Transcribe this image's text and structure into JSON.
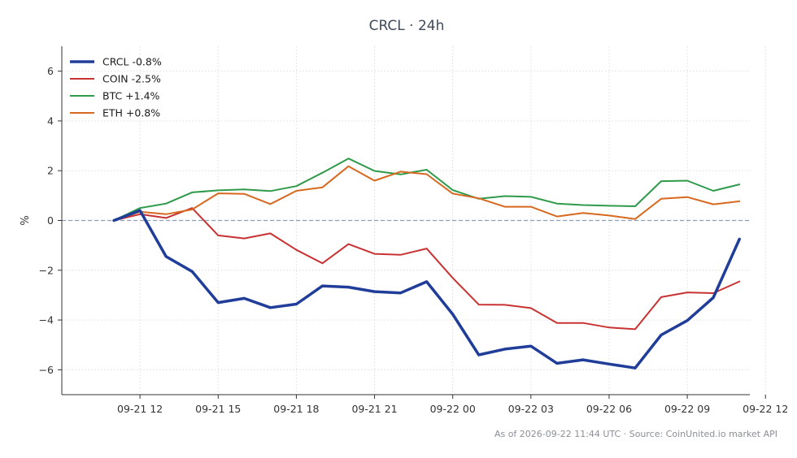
{
  "chart_data": {
    "type": "line",
    "title": "CRCL · 24h",
    "ylabel": "%",
    "xlabel": "",
    "ylim": [
      -7,
      7
    ],
    "yticks": [
      -6,
      -4,
      -2,
      0,
      2,
      4,
      6
    ],
    "ytick_labels": [
      "−6",
      "−4",
      "−2",
      "0",
      "2",
      "4",
      "6"
    ],
    "xlim": [
      -2,
      24.4
    ],
    "xticks": [
      1,
      4,
      7,
      10,
      13,
      16,
      19,
      22,
      25
    ],
    "xtick_labels": [
      "09-21 12",
      "09-21 15",
      "09-21 18",
      "09-21 21",
      "09-22 00",
      "09-22 03",
      "09-22 06",
      "09-22 09",
      "09-22 12"
    ],
    "x": [
      0,
      1,
      2,
      3,
      4,
      5,
      6,
      7,
      8,
      9,
      10,
      11,
      12,
      13,
      14,
      15,
      16,
      17,
      18,
      19,
      20,
      21,
      22,
      23,
      24
    ],
    "grid": true,
    "zero_line": true,
    "legend_position": "top-left",
    "series": [
      {
        "name": "CRCL -0.8%",
        "color": "#1f3d99",
        "width": 3.5,
        "values": [
          0.0,
          0.4,
          -1.45,
          -2.05,
          -3.3,
          -3.13,
          -3.5,
          -3.36,
          -2.63,
          -2.68,
          -2.86,
          -2.91,
          -2.46,
          -3.77,
          -5.4,
          -5.17,
          -5.05,
          -5.74,
          -5.6,
          -5.77,
          -5.93,
          -4.6,
          -4.02,
          -3.1,
          -0.75
        ]
      },
      {
        "name": "COIN -2.5%",
        "color": "#c83232",
        "width": 2,
        "values": [
          0.0,
          0.25,
          0.1,
          0.5,
          -0.6,
          -0.72,
          -0.52,
          -1.18,
          -1.72,
          -0.95,
          -1.34,
          -1.38,
          -1.13,
          -2.31,
          -3.38,
          -3.39,
          -3.52,
          -4.12,
          -4.12,
          -4.3,
          -4.37,
          -3.08,
          -2.89,
          -2.92,
          -2.45
        ]
      },
      {
        "name": "BTC +1.4%",
        "color": "#2e9a4a",
        "width": 2,
        "values": [
          0.0,
          0.5,
          0.68,
          1.13,
          1.21,
          1.25,
          1.18,
          1.38,
          1.92,
          2.49,
          1.99,
          1.85,
          2.04,
          1.22,
          0.87,
          0.98,
          0.95,
          0.68,
          0.62,
          0.59,
          0.57,
          1.58,
          1.6,
          1.19,
          1.45
        ]
      },
      {
        "name": "ETH +0.8%",
        "color": "#d6691f",
        "width": 2,
        "values": [
          0.0,
          0.35,
          0.25,
          0.44,
          1.09,
          1.07,
          0.66,
          1.19,
          1.33,
          2.18,
          1.6,
          1.96,
          1.86,
          1.08,
          0.89,
          0.55,
          0.55,
          0.16,
          0.3,
          0.2,
          0.06,
          0.87,
          0.94,
          0.65,
          0.77
        ]
      }
    ]
  },
  "footer": {
    "text": "As of 2026-09-22 11:44 UTC · Source: CoinUnited.io market API"
  }
}
